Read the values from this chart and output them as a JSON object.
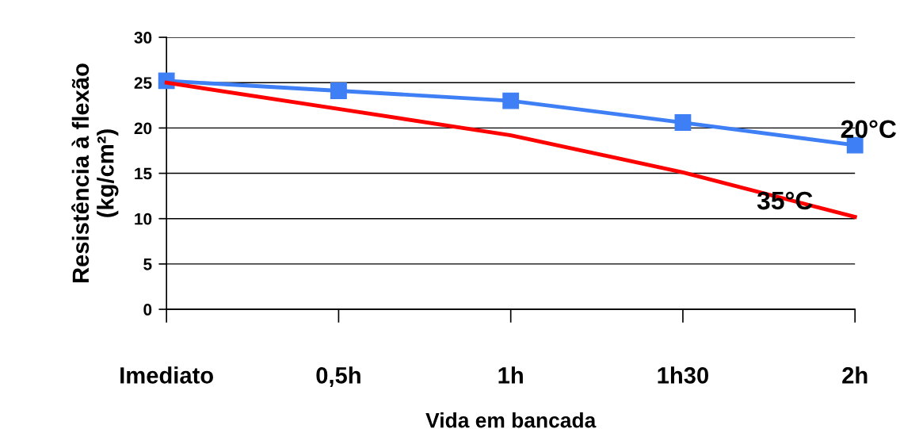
{
  "chart_data": {
    "type": "line",
    "xlabel": "Vida em bancada",
    "ylabel": "Resistência à flexão\n(kg/cm²)",
    "categories": [
      "Imediato",
      "0,5h",
      "1h",
      "1h30",
      "2h"
    ],
    "series": [
      {
        "name": "20°C",
        "color": "#3f7ff5",
        "marker": "square",
        "values": [
          25.2,
          24.1,
          23.0,
          20.6,
          18.1
        ]
      },
      {
        "name": "35°C",
        "color": "#ff0000",
        "marker": "none",
        "values": [
          25.0,
          22.1,
          19.2,
          15.1,
          10.2
        ]
      }
    ],
    "ylim": [
      0,
      30
    ],
    "yticks": [
      0,
      5,
      10,
      15,
      20,
      25,
      30
    ],
    "grid": "y",
    "legend": false,
    "line_style": "solid"
  }
}
